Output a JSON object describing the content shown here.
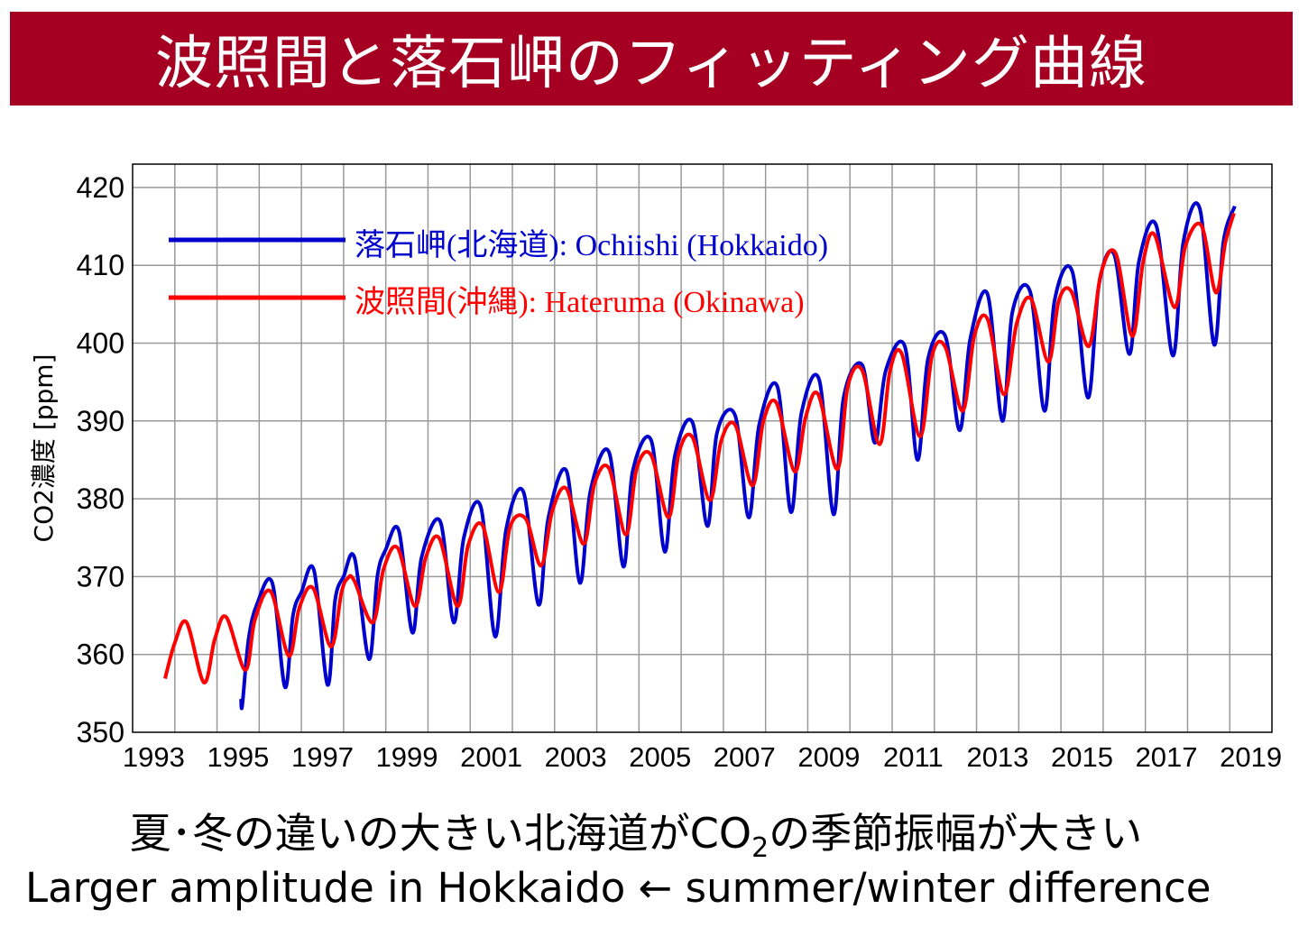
{
  "title": "波照間と落石岬のフィッティング曲線",
  "caption": {
    "jp_before": "夏･冬の違いの大きい北海道がCO",
    "jp_sub": "2",
    "jp_after": "の季節振幅が大きい",
    "en": "Larger amplitude in Hokkaido ← summer/winter difference"
  },
  "chart_data": {
    "type": "line",
    "ylabel": "CO2濃度 [ppm]",
    "xlabel": "",
    "xlim": [
      1993,
      2020
    ],
    "ylim": [
      350,
      423
    ],
    "yticks": [
      350,
      360,
      370,
      380,
      390,
      400,
      410,
      420
    ],
    "xtick_labels": [
      "1993",
      "1995",
      "1997",
      "1999",
      "2001",
      "2003",
      "2005",
      "2007",
      "2009",
      "2011",
      "2013",
      "2015",
      "2017",
      "2019"
    ],
    "grid": true,
    "legend_placement": "top-left",
    "series": [
      {
        "name": "落石岬(北海道): Ochiishi (Hokkaido)",
        "color": "#0000cc",
        "points": [
          [
            1995.57,
            354.3
          ],
          [
            1995.6,
            353.5
          ],
          [
            1995.75,
            362
          ],
          [
            1995.95,
            366.5
          ],
          [
            1996.31,
            369.2
          ],
          [
            1996.61,
            355.8
          ],
          [
            1996.8,
            365
          ],
          [
            1997.0,
            368
          ],
          [
            1997.3,
            370.8
          ],
          [
            1997.62,
            356.1
          ],
          [
            1997.8,
            367
          ],
          [
            1998.0,
            370
          ],
          [
            1998.26,
            372.4
          ],
          [
            1998.6,
            359.4
          ],
          [
            1998.8,
            370
          ],
          [
            1999.0,
            373.5
          ],
          [
            1999.31,
            375.9
          ],
          [
            1999.63,
            362.8
          ],
          [
            1999.85,
            372.5
          ],
          [
            2000.29,
            377.1
          ],
          [
            2000.61,
            364.1
          ],
          [
            2000.85,
            375
          ],
          [
            2001.25,
            379.0
          ],
          [
            2001.59,
            362.3
          ],
          [
            2001.85,
            376
          ],
          [
            2002.26,
            380.9
          ],
          [
            2002.62,
            366.4
          ],
          [
            2002.85,
            377.5
          ],
          [
            2003.28,
            383.6
          ],
          [
            2003.6,
            369.2
          ],
          [
            2003.85,
            381
          ],
          [
            2004.29,
            386.0
          ],
          [
            2004.63,
            371.3
          ],
          [
            2004.85,
            383.5
          ],
          [
            2005.29,
            387.5
          ],
          [
            2005.61,
            373.2
          ],
          [
            2005.85,
            385.5
          ],
          [
            2006.27,
            389.8
          ],
          [
            2006.62,
            376.5
          ],
          [
            2006.85,
            388.5
          ],
          [
            2007.28,
            390.7
          ],
          [
            2007.6,
            377.6
          ],
          [
            2007.85,
            389.5
          ],
          [
            2008.28,
            394.4
          ],
          [
            2008.6,
            378.3
          ],
          [
            2008.85,
            391
          ],
          [
            2009.27,
            395.3
          ],
          [
            2009.61,
            378.0
          ],
          [
            2009.85,
            393
          ],
          [
            2010.29,
            397.2
          ],
          [
            2010.59,
            387.2
          ],
          [
            2010.85,
            396.5
          ],
          [
            2011.3,
            399.6
          ],
          [
            2011.6,
            385.0
          ],
          [
            2011.85,
            398
          ],
          [
            2012.26,
            400.9
          ],
          [
            2012.6,
            388.8
          ],
          [
            2012.85,
            400.5
          ],
          [
            2013.26,
            406.3
          ],
          [
            2013.61,
            390.0
          ],
          [
            2013.85,
            404
          ],
          [
            2014.27,
            406.6
          ],
          [
            2014.61,
            391.3
          ],
          [
            2014.85,
            405.5
          ],
          [
            2015.27,
            409.2
          ],
          [
            2015.64,
            393.0
          ],
          [
            2015.9,
            407.5
          ],
          [
            2016.26,
            411.4
          ],
          [
            2016.62,
            398.6
          ],
          [
            2016.85,
            410.5
          ],
          [
            2017.26,
            415.1
          ],
          [
            2017.65,
            398.4
          ],
          [
            2017.9,
            413
          ],
          [
            2018.29,
            417.3
          ],
          [
            2018.63,
            399.8
          ],
          [
            2018.85,
            413
          ],
          [
            2019.12,
            417.6
          ]
        ]
      },
      {
        "name": "波照間(沖縄): Hateruma (Okinawa)",
        "color": "#ff0000",
        "points": [
          [
            1993.77,
            356.9
          ],
          [
            1994.0,
            361.5
          ],
          [
            1994.28,
            364.1
          ],
          [
            1994.69,
            356.4
          ],
          [
            1994.95,
            362
          ],
          [
            1995.22,
            364.8
          ],
          [
            1995.67,
            358.0
          ],
          [
            1995.9,
            364.5
          ],
          [
            1996.27,
            368.1
          ],
          [
            1996.7,
            359.8
          ],
          [
            1996.95,
            366
          ],
          [
            1997.28,
            368.5
          ],
          [
            1997.7,
            361.0
          ],
          [
            1997.95,
            368
          ],
          [
            1998.1,
            369.8
          ],
          [
            1998.25,
            369.5
          ],
          [
            1998.69,
            364.1
          ],
          [
            1998.95,
            371
          ],
          [
            1999.28,
            373.7
          ],
          [
            1999.69,
            366.2
          ],
          [
            1999.95,
            372.5
          ],
          [
            2000.27,
            374.9
          ],
          [
            2000.7,
            366.2
          ],
          [
            2000.95,
            374
          ],
          [
            2001.29,
            376.6
          ],
          [
            2001.68,
            368.0
          ],
          [
            2001.95,
            376.5
          ],
          [
            2002.32,
            377.4
          ],
          [
            2002.68,
            371.4
          ],
          [
            2002.95,
            378.5
          ],
          [
            2003.28,
            381.3
          ],
          [
            2003.69,
            374.2
          ],
          [
            2003.95,
            382
          ],
          [
            2004.29,
            383.9
          ],
          [
            2004.69,
            375.4
          ],
          [
            2004.95,
            384
          ],
          [
            2005.29,
            385.6
          ],
          [
            2005.7,
            377.6
          ],
          [
            2005.95,
            386
          ],
          [
            2006.27,
            387.9
          ],
          [
            2006.68,
            379.8
          ],
          [
            2006.95,
            387.5
          ],
          [
            2007.28,
            389.5
          ],
          [
            2007.69,
            381.7
          ],
          [
            2007.95,
            390
          ],
          [
            2008.26,
            392.3
          ],
          [
            2008.69,
            383.5
          ],
          [
            2008.95,
            390.5
          ],
          [
            2009.25,
            393.4
          ],
          [
            2009.7,
            383.8
          ],
          [
            2009.95,
            394.5
          ],
          [
            2010.29,
            396.5
          ],
          [
            2010.7,
            387.0
          ],
          [
            2010.95,
            396.5
          ],
          [
            2011.23,
            398.6
          ],
          [
            2011.66,
            388.0
          ],
          [
            2011.95,
            398.5
          ],
          [
            2012.26,
            399.5
          ],
          [
            2012.67,
            391.3
          ],
          [
            2012.95,
            401
          ],
          [
            2013.26,
            403.1
          ],
          [
            2013.65,
            393.4
          ],
          [
            2013.95,
            402.5
          ],
          [
            2014.29,
            405.7
          ],
          [
            2014.7,
            397.6
          ],
          [
            2014.95,
            405.5
          ],
          [
            2015.25,
            406.6
          ],
          [
            2015.66,
            399.6
          ],
          [
            2015.95,
            409
          ],
          [
            2016.3,
            411.5
          ],
          [
            2016.69,
            400.9
          ],
          [
            2016.95,
            410.5
          ],
          [
            2017.22,
            413.9
          ],
          [
            2017.69,
            404.6
          ],
          [
            2017.95,
            412.5
          ],
          [
            2018.33,
            415.1
          ],
          [
            2018.67,
            406.5
          ],
          [
            2018.9,
            413
          ],
          [
            2019.1,
            416.7
          ]
        ]
      }
    ]
  }
}
